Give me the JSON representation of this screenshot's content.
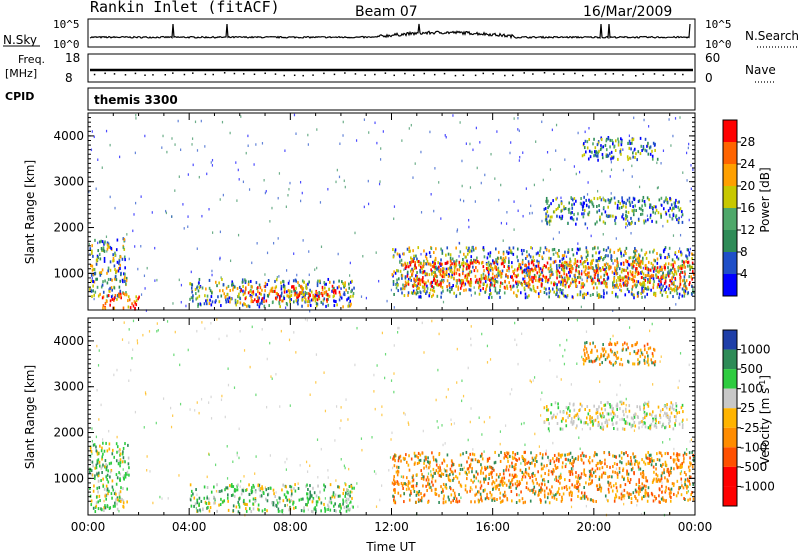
{
  "header": {
    "station": "Rankin Inlet (fitACF)",
    "beam": "Beam 07",
    "date": "16/Mar/2009"
  },
  "top_panels": {
    "nsky_label": "N.Sky",
    "nsky_ticks": [
      "10^5",
      "10^0"
    ],
    "nsearch_label": "N.Search",
    "nsearch_ticks": [
      "10^5",
      "10^0"
    ],
    "freq_label": "Freq.",
    "freq_unit": "[MHz]",
    "freq_ticks": [
      "18",
      "8"
    ],
    "nave_label": "Nave",
    "nave_ticks": [
      "60",
      "0"
    ],
    "cpid_label": "CPID",
    "cpid_value": "themis 3300"
  },
  "colors": {
    "power_scale": [
      "#0000ff",
      "#1f4fc8",
      "#2e8b57",
      "#4fa86a",
      "#c8c800",
      "#ffa000",
      "#ff6400",
      "#ff0000"
    ],
    "velocity_scale": [
      "#ff0000",
      "#ff5000",
      "#ff8c00",
      "#ffb400",
      "#c8c8c8",
      "#2ecc40",
      "#2e8b57",
      "#1f3fa8"
    ]
  },
  "chart_data": [
    {
      "type": "heatmap",
      "panel": "power",
      "ylabel": "Slant Range [km]",
      "y_ticks": [
        "1000",
        "2000",
        "3000",
        "4000"
      ],
      "ylim": [
        200,
        4500
      ],
      "colorbar_label": "Power [dB]",
      "colorbar_ticks": [
        "4",
        "8",
        "12",
        "16",
        "20",
        "24",
        "28"
      ],
      "regions": [
        {
          "t0": 0.0,
          "t1": 1.5,
          "r0": 500,
          "r1": 1800,
          "level": "mid"
        },
        {
          "t0": 0.5,
          "t1": 2.0,
          "r0": 250,
          "r1": 600,
          "level": "high"
        },
        {
          "t0": 4.0,
          "t1": 10.5,
          "r0": 300,
          "r1": 900,
          "level": "mid"
        },
        {
          "t0": 6.0,
          "t1": 10.0,
          "r0": 400,
          "r1": 750,
          "level": "high"
        },
        {
          "t0": 12.0,
          "t1": 24.0,
          "r0": 500,
          "r1": 1600,
          "level": "mid"
        },
        {
          "t0": 12.5,
          "t1": 24.0,
          "r0": 700,
          "r1": 1300,
          "level": "high"
        },
        {
          "t0": 18.0,
          "t1": 23.5,
          "r0": 2100,
          "r1": 2700,
          "level": "low"
        },
        {
          "t0": 19.5,
          "t1": 22.5,
          "r0": 3500,
          "r1": 4000,
          "level": "low"
        }
      ]
    },
    {
      "type": "heatmap",
      "panel": "velocity",
      "xlabel": "Time UT",
      "ylabel": "Slant Range [km]",
      "x_ticks": [
        "00:00",
        "04:00",
        "08:00",
        "12:00",
        "16:00",
        "20:00",
        "00:00"
      ],
      "y_ticks": [
        "1000",
        "2000",
        "3000",
        "4000"
      ],
      "ylim": [
        200,
        4500
      ],
      "colorbar_label": "Velocity [m s",
      "colorbar_label_sup": "-1",
      "colorbar_label_end": "]",
      "colorbar_ticks": [
        "1000",
        "500",
        "100",
        "25",
        "-25",
        "-100",
        "-500",
        "-1000"
      ],
      "regions": [
        {
          "t0": 0.0,
          "t1": 1.6,
          "r0": 300,
          "r1": 1800,
          "level": "green"
        },
        {
          "t0": 4.0,
          "t1": 10.5,
          "r0": 300,
          "r1": 900,
          "level": "green"
        },
        {
          "t0": 12.0,
          "t1": 24.0,
          "r0": 500,
          "r1": 1600,
          "level": "orange"
        },
        {
          "t0": 18.0,
          "t1": 23.5,
          "r0": 2100,
          "r1": 2700,
          "level": "grey"
        },
        {
          "t0": 19.5,
          "t1": 22.5,
          "r0": 3500,
          "r1": 4000,
          "level": "orange"
        }
      ]
    }
  ]
}
